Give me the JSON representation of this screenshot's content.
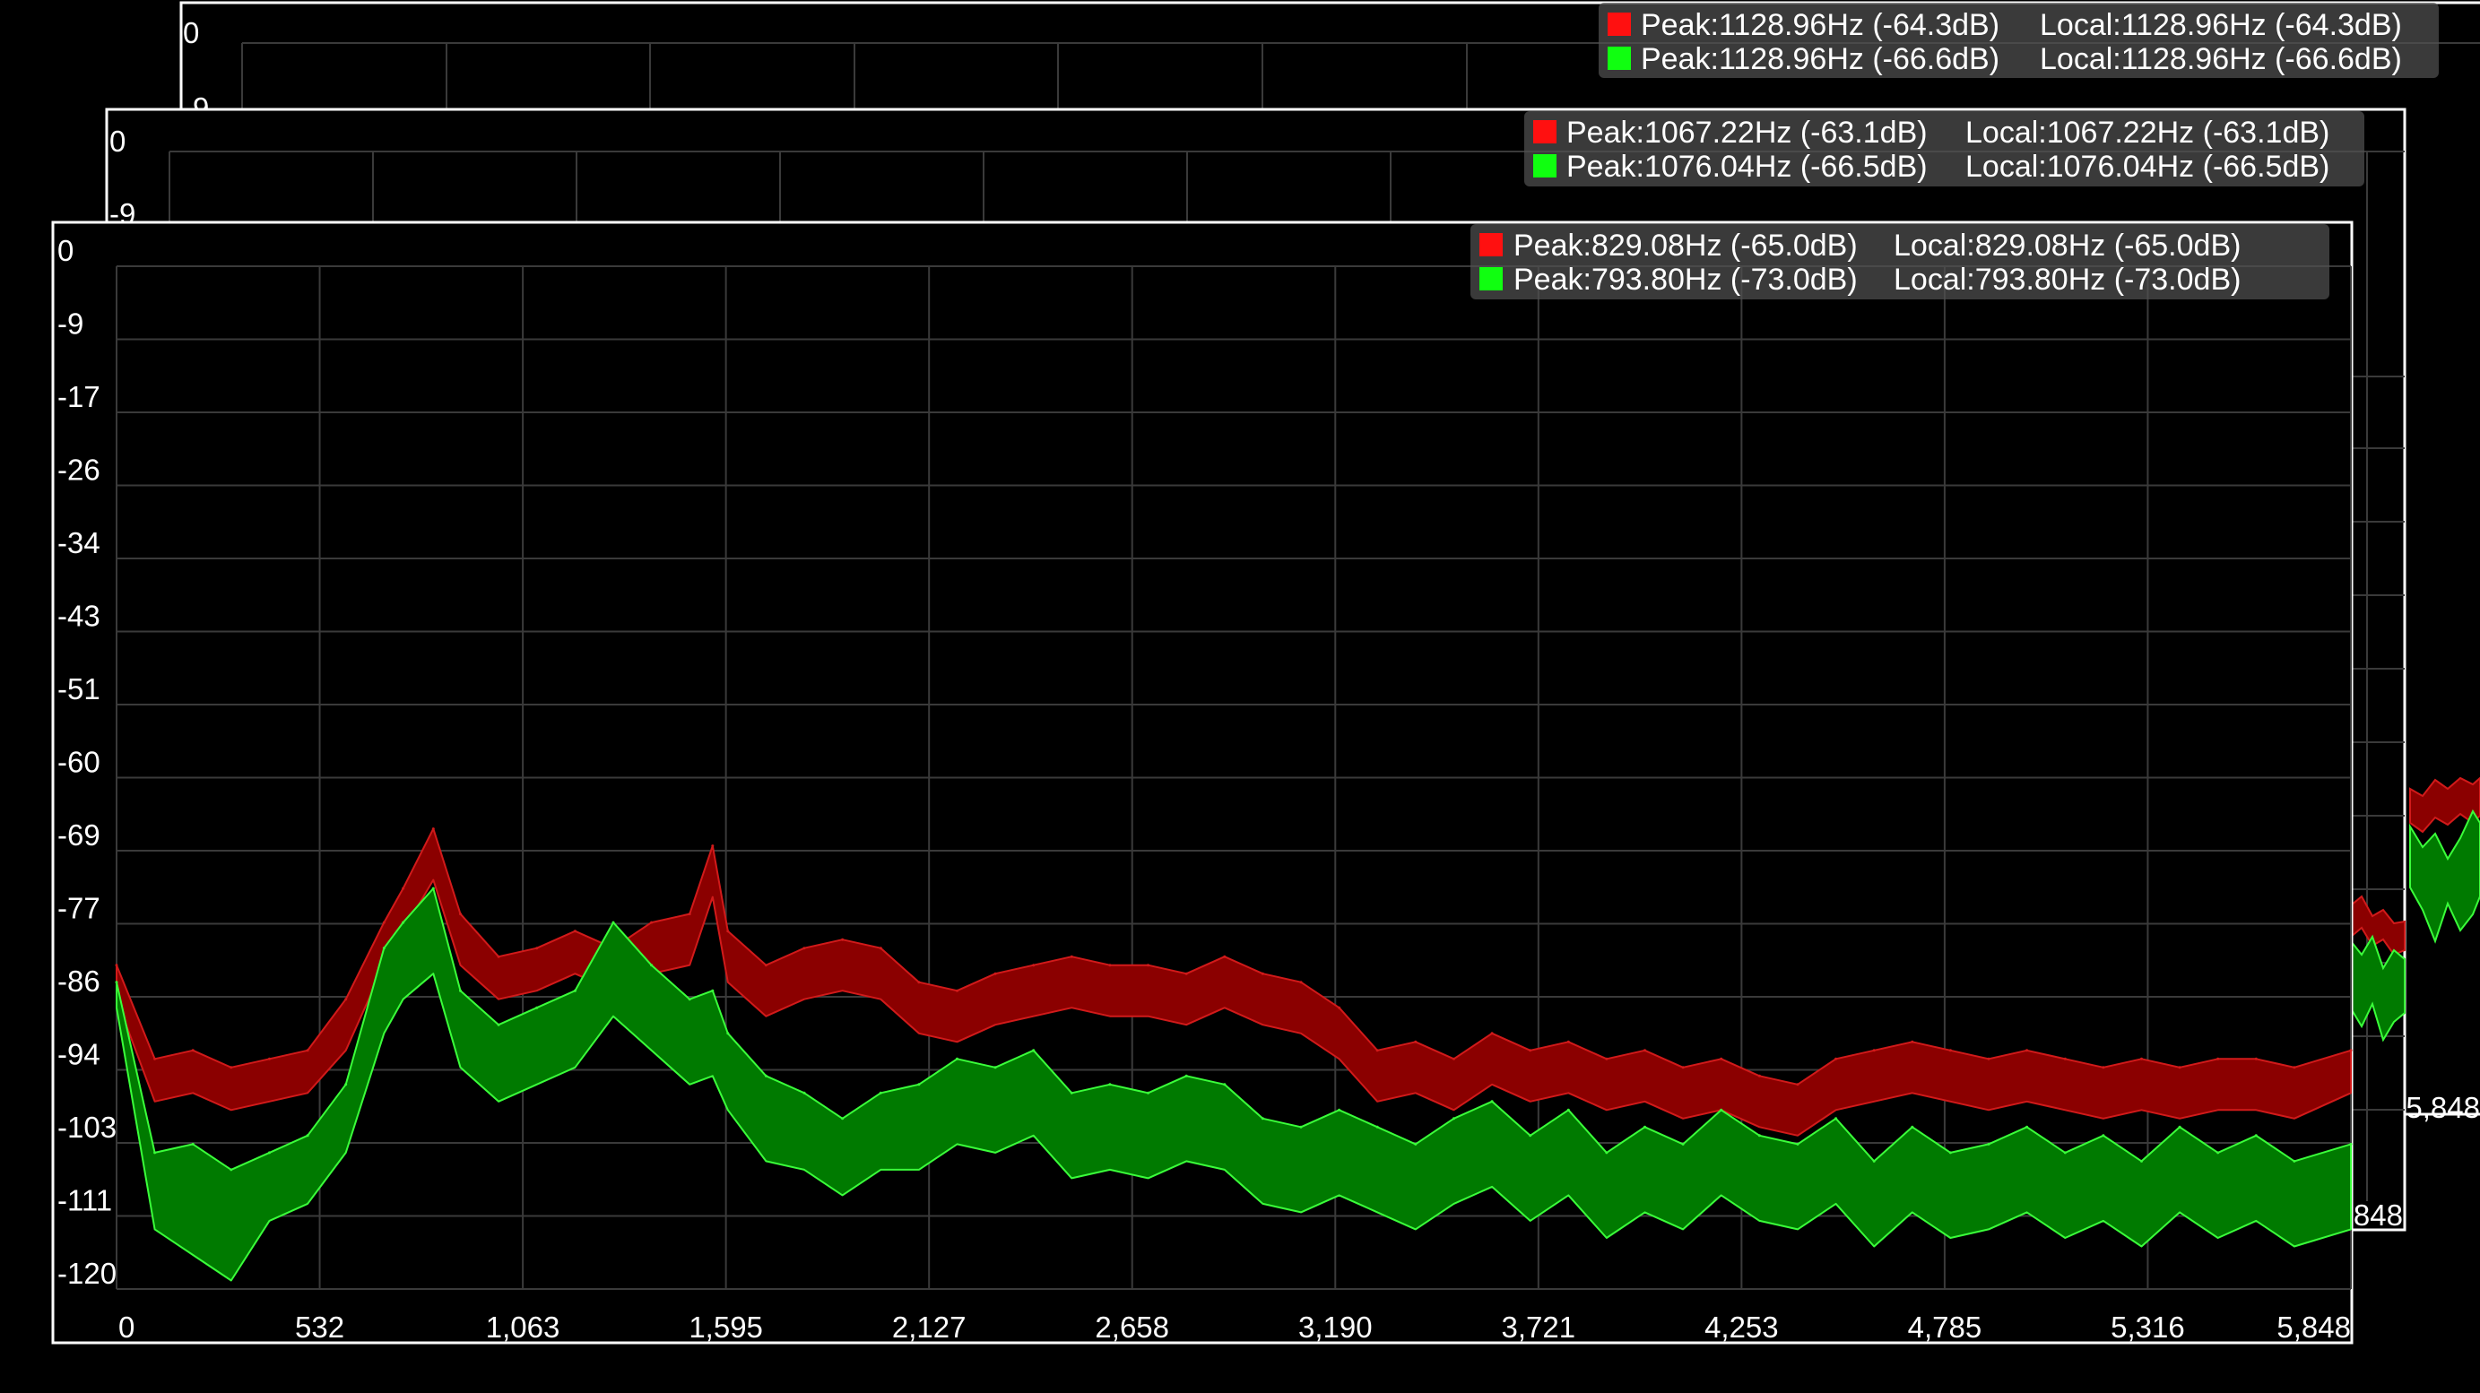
{
  "colors": {
    "background": "#000000",
    "frame": "#ffffff",
    "grid": "#3a3a3a",
    "legend_bg": "#505050",
    "channel_red_fill": "#8b0000",
    "channel_red_line": "#d11a1a",
    "channel_green_fill": "#007a00",
    "channel_green_line": "#3aff3a",
    "swatch_red": "#ff1010",
    "swatch_green": "#10ff10"
  },
  "windows": [
    {
      "legend": [
        {
          "swatch": "red",
          "peak": "Peak:1128.96Hz (-64.3dB)",
          "local": "Local:1128.96Hz (-64.3dB)"
        },
        {
          "swatch": "green",
          "peak": "Peak:1128.96Hz (-66.6dB)",
          "local": "Local:1128.96Hz (-66.6dB)"
        }
      ],
      "visible_y_ticks": [
        "0",
        "-9"
      ],
      "visible_x_ticks": [
        "5,848"
      ]
    },
    {
      "legend": [
        {
          "swatch": "red",
          "peak": "Peak:1067.22Hz (-63.1dB)",
          "local": "Local:1067.22Hz (-63.1dB)"
        },
        {
          "swatch": "green",
          "peak": "Peak:1076.04Hz (-66.5dB)",
          "local": "Local:1076.04Hz (-66.5dB)"
        }
      ],
      "visible_y_ticks": [
        "0",
        "-9"
      ],
      "visible_x_ticks": [
        "5,848"
      ]
    }
  ],
  "chart_data": {
    "type": "area",
    "xlabel": "",
    "ylabel": "",
    "xlim": [
      0,
      5848
    ],
    "ylim": [
      -120,
      0
    ],
    "grid": true,
    "legend_position": "top-right",
    "y_ticks": [
      "0",
      "-9",
      "-17",
      "-26",
      "-34",
      "-43",
      "-51",
      "-60",
      "-69",
      "-77",
      "-86",
      "-94",
      "-103",
      "-111",
      "-120"
    ],
    "x_ticks": [
      "0",
      "532",
      "1,063",
      "1,595",
      "2,127",
      "2,658",
      "3,190",
      "3,721",
      "4,253",
      "4,785",
      "5,316",
      "5,848"
    ],
    "legend": [
      {
        "swatch": "red",
        "peak": "Peak:829.08Hz (-65.0dB)",
        "local": "Local:829.08Hz (-65.0dB)"
      },
      {
        "swatch": "green",
        "peak": "Peak:793.80Hz (-73.0dB)",
        "local": "Local:793.80Hz (-73.0dB)"
      }
    ],
    "x": [
      0,
      100,
      200,
      300,
      400,
      500,
      600,
      700,
      750,
      829,
      900,
      1000,
      1100,
      1200,
      1300,
      1400,
      1500,
      1560,
      1600,
      1700,
      1800,
      1900,
      2000,
      2100,
      2200,
      2300,
      2400,
      2500,
      2600,
      2700,
      2800,
      2900,
      3000,
      3100,
      3200,
      3300,
      3400,
      3500,
      3600,
      3700,
      3800,
      3900,
      4000,
      4100,
      4200,
      4300,
      4400,
      4500,
      4600,
      4700,
      4800,
      4900,
      5000,
      5100,
      5200,
      5300,
      5400,
      5500,
      5600,
      5700,
      5848
    ],
    "series": [
      {
        "swatch": "red",
        "upper": [
          -82,
          -93,
          -92,
          -94,
          -93,
          -92,
          -86,
          -77,
          -73,
          -66,
          -76,
          -81,
          -80,
          -78,
          -80,
          -77,
          -76,
          -68,
          -78,
          -82,
          -80,
          -79,
          -80,
          -84,
          -85,
          -83,
          -82,
          -81,
          -82,
          -82,
          -83,
          -81,
          -83,
          -84,
          -87,
          -92,
          -91,
          -93,
          -90,
          -92,
          -91,
          -93,
          -92,
          -94,
          -93,
          -95,
          -96,
          -93,
          -92,
          -91,
          -92,
          -93,
          -92,
          -93,
          -94,
          -93,
          -94,
          -93,
          -93,
          -94,
          -92
        ],
        "lower": [
          -86,
          -98,
          -97,
          -99,
          -98,
          -97,
          -92,
          -82,
          -78,
          -72,
          -82,
          -86,
          -85,
          -83,
          -85,
          -83,
          -82,
          -74,
          -84,
          -88,
          -86,
          -85,
          -86,
          -90,
          -91,
          -89,
          -88,
          -87,
          -88,
          -88,
          -89,
          -87,
          -89,
          -90,
          -93,
          -98,
          -97,
          -99,
          -96,
          -98,
          -97,
          -99,
          -98,
          -100,
          -99,
          -101,
          -102,
          -99,
          -98,
          -97,
          -98,
          -99,
          -98,
          -99,
          -100,
          -99,
          -100,
          -99,
          -99,
          -100,
          -97
        ]
      },
      {
        "swatch": "green",
        "upper": [
          -84,
          -104,
          -103,
          -106,
          -104,
          -102,
          -96,
          -80,
          -77,
          -73,
          -85,
          -89,
          -87,
          -85,
          -77,
          -82,
          -86,
          -85,
          -90,
          -95,
          -97,
          -100,
          -97,
          -96,
          -93,
          -94,
          -92,
          -97,
          -96,
          -97,
          -95,
          -96,
          -100,
          -101,
          -99,
          -101,
          -103,
          -100,
          -98,
          -102,
          -99,
          -104,
          -101,
          -103,
          -99,
          -102,
          -103,
          -100,
          -105,
          -101,
          -104,
          -103,
          -101,
          -104,
          -102,
          -105,
          -101,
          -104,
          -102,
          -105,
          -103
        ],
        "lower": [
          -87,
          -113,
          -116,
          -119,
          -112,
          -110,
          -104,
          -90,
          -86,
          -83,
          -94,
          -98,
          -96,
          -94,
          -88,
          -92,
          -96,
          -95,
          -99,
          -105,
          -106,
          -109,
          -106,
          -106,
          -103,
          -104,
          -102,
          -107,
          -106,
          -107,
          -105,
          -106,
          -110,
          -111,
          -109,
          -111,
          -113,
          -110,
          -108,
          -112,
          -109,
          -114,
          -111,
          -113,
          -109,
          -112,
          -113,
          -110,
          -115,
          -111,
          -114,
          -113,
          -111,
          -114,
          -112,
          -115,
          -111,
          -114,
          -112,
          -115,
          -113
        ]
      }
    ]
  }
}
